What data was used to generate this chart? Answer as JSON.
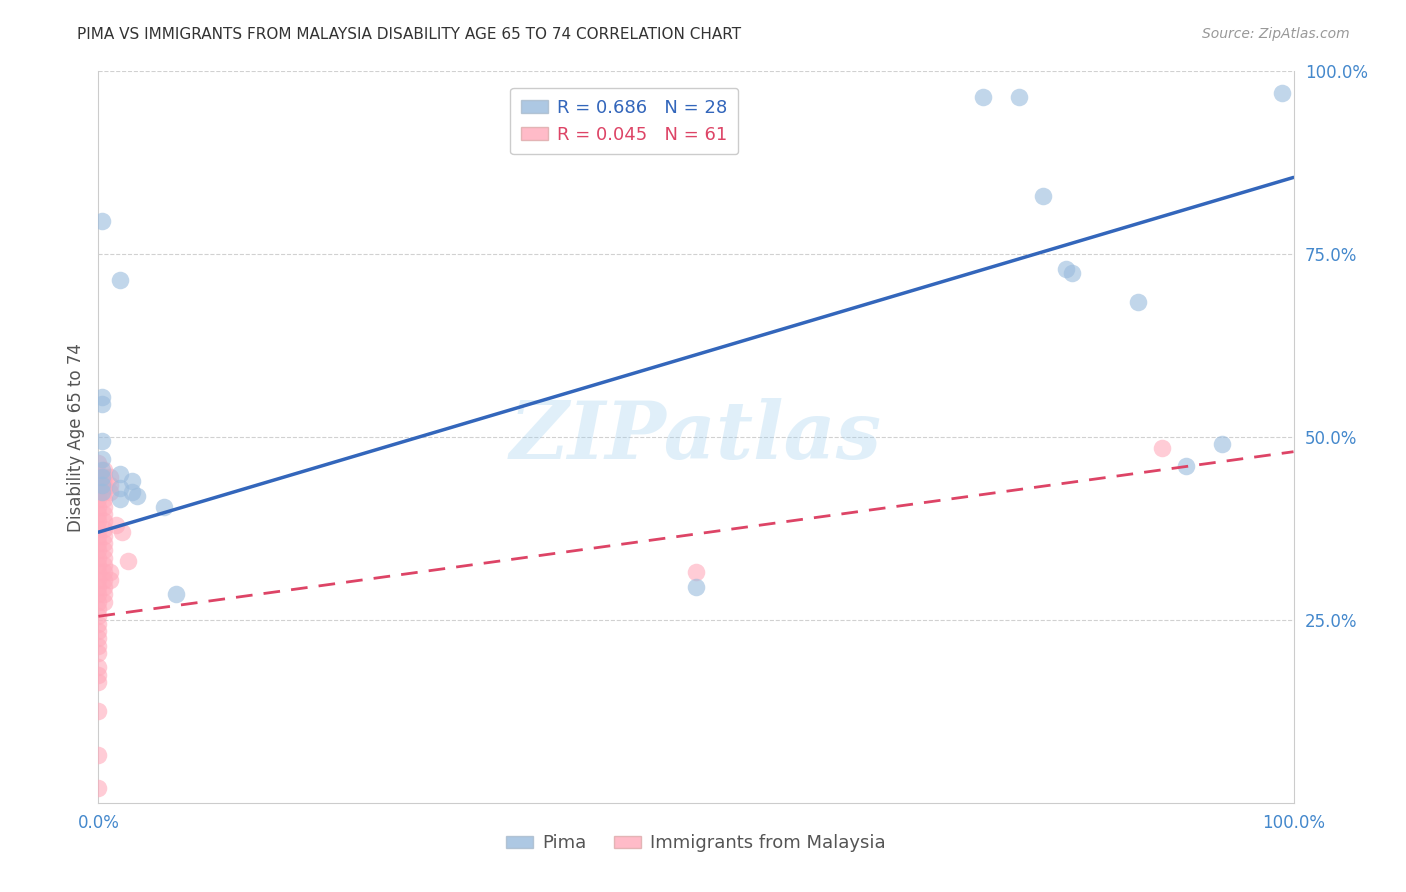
{
  "title": "PIMA VS IMMIGRANTS FROM MALAYSIA DISABILITY AGE 65 TO 74 CORRELATION CHART",
  "source": "Source: ZipAtlas.com",
  "ylabel": "Disability Age 65 to 74",
  "xlim": [
    0,
    1
  ],
  "ylim": [
    0,
    1
  ],
  "x_tick_labels": [
    "0.0%",
    "",
    "",
    "",
    "",
    "100.0%"
  ],
  "y_tick_labels_right": [
    "100.0%",
    "75.0%",
    "50.0%",
    "25.0%",
    ""
  ],
  "legend_line1": "R = 0.686   N = 28",
  "legend_line2": "R = 0.045   N = 61",
  "pima_color": "#99bbdd",
  "malaysia_color": "#ffaabb",
  "pima_scatter": [
    [
      0.003,
      0.795
    ],
    [
      0.018,
      0.715
    ],
    [
      0.003,
      0.555
    ],
    [
      0.003,
      0.545
    ],
    [
      0.003,
      0.495
    ],
    [
      0.003,
      0.47
    ],
    [
      0.003,
      0.455
    ],
    [
      0.003,
      0.445
    ],
    [
      0.003,
      0.435
    ],
    [
      0.003,
      0.425
    ],
    [
      0.018,
      0.45
    ],
    [
      0.018,
      0.43
    ],
    [
      0.018,
      0.415
    ],
    [
      0.028,
      0.44
    ],
    [
      0.028,
      0.425
    ],
    [
      0.032,
      0.42
    ],
    [
      0.055,
      0.405
    ],
    [
      0.065,
      0.285
    ],
    [
      0.5,
      0.295
    ],
    [
      0.74,
      0.965
    ],
    [
      0.77,
      0.965
    ],
    [
      0.79,
      0.83
    ],
    [
      0.81,
      0.73
    ],
    [
      0.815,
      0.725
    ],
    [
      0.87,
      0.685
    ],
    [
      0.91,
      0.46
    ],
    [
      0.94,
      0.49
    ],
    [
      0.99,
      0.97
    ]
  ],
  "malaysia_scatter": [
    [
      0.0,
      0.465
    ],
    [
      0.0,
      0.445
    ],
    [
      0.0,
      0.435
    ],
    [
      0.0,
      0.425
    ],
    [
      0.0,
      0.415
    ],
    [
      0.0,
      0.405
    ],
    [
      0.0,
      0.395
    ],
    [
      0.0,
      0.385
    ],
    [
      0.0,
      0.375
    ],
    [
      0.0,
      0.365
    ],
    [
      0.0,
      0.355
    ],
    [
      0.0,
      0.345
    ],
    [
      0.0,
      0.335
    ],
    [
      0.0,
      0.325
    ],
    [
      0.0,
      0.315
    ],
    [
      0.0,
      0.305
    ],
    [
      0.0,
      0.295
    ],
    [
      0.0,
      0.285
    ],
    [
      0.0,
      0.275
    ],
    [
      0.0,
      0.265
    ],
    [
      0.0,
      0.255
    ],
    [
      0.0,
      0.245
    ],
    [
      0.0,
      0.235
    ],
    [
      0.0,
      0.225
    ],
    [
      0.0,
      0.215
    ],
    [
      0.0,
      0.205
    ],
    [
      0.0,
      0.185
    ],
    [
      0.0,
      0.175
    ],
    [
      0.0,
      0.165
    ],
    [
      0.0,
      0.125
    ],
    [
      0.0,
      0.065
    ],
    [
      0.0,
      0.02
    ],
    [
      0.005,
      0.455
    ],
    [
      0.005,
      0.445
    ],
    [
      0.005,
      0.435
    ],
    [
      0.005,
      0.425
    ],
    [
      0.005,
      0.415
    ],
    [
      0.005,
      0.405
    ],
    [
      0.005,
      0.395
    ],
    [
      0.005,
      0.385
    ],
    [
      0.005,
      0.375
    ],
    [
      0.005,
      0.365
    ],
    [
      0.005,
      0.355
    ],
    [
      0.005,
      0.345
    ],
    [
      0.005,
      0.335
    ],
    [
      0.005,
      0.325
    ],
    [
      0.005,
      0.315
    ],
    [
      0.005,
      0.305
    ],
    [
      0.005,
      0.295
    ],
    [
      0.005,
      0.285
    ],
    [
      0.005,
      0.275
    ],
    [
      0.01,
      0.445
    ],
    [
      0.01,
      0.435
    ],
    [
      0.01,
      0.425
    ],
    [
      0.01,
      0.315
    ],
    [
      0.01,
      0.305
    ],
    [
      0.015,
      0.38
    ],
    [
      0.02,
      0.37
    ],
    [
      0.025,
      0.33
    ],
    [
      0.5,
      0.315
    ],
    [
      0.89,
      0.485
    ]
  ],
  "pima_line_x0": 0.0,
  "pima_line_y0": 0.37,
  "pima_line_x1": 1.0,
  "pima_line_y1": 0.855,
  "malaysia_line_x0": 0.0,
  "malaysia_line_y0": 0.255,
  "malaysia_line_x1": 1.0,
  "malaysia_line_y1": 0.48,
  "pima_line_color": "#3366bb",
  "malaysia_line_color": "#dd4466",
  "watermark_text": "ZIPatlas",
  "background_color": "#ffffff",
  "grid_color": "#cccccc",
  "bottom_legend": [
    "Pima",
    "Immigrants from Malaysia"
  ]
}
